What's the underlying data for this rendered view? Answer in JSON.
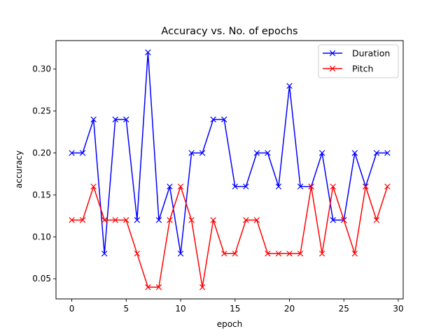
{
  "chart_data": {
    "type": "line",
    "title": "Accuracy vs. No. of epochs",
    "xlabel": "epoch",
    "ylabel": "accuracy",
    "xlim": [
      -1.45,
      30.45
    ],
    "ylim": [
      0.026,
      0.334
    ],
    "xticks": [
      0,
      5,
      10,
      15,
      20,
      25,
      30
    ],
    "yticks": [
      0.05,
      0.1,
      0.15,
      0.2,
      0.25,
      0.3
    ],
    "ytick_labels": [
      "0.05",
      "0.10",
      "0.15",
      "0.20",
      "0.25",
      "0.30"
    ],
    "grid": false,
    "legend_position": "top-right",
    "marker": "x",
    "x": [
      0,
      1,
      2,
      3,
      4,
      5,
      6,
      7,
      8,
      9,
      10,
      11,
      12,
      13,
      14,
      15,
      16,
      17,
      18,
      19,
      20,
      21,
      22,
      23,
      24,
      25,
      26,
      27,
      28,
      29
    ],
    "series": [
      {
        "name": "Duration",
        "color": "#0000ff",
        "values": [
          0.2,
          0.2,
          0.24,
          0.08,
          0.24,
          0.24,
          0.12,
          0.32,
          0.12,
          0.16,
          0.08,
          0.2,
          0.2,
          0.24,
          0.24,
          0.16,
          0.16,
          0.2,
          0.2,
          0.16,
          0.28,
          0.16,
          0.16,
          0.2,
          0.12,
          0.12,
          0.2,
          0.16,
          0.2,
          0.2
        ]
      },
      {
        "name": "Pitch",
        "color": "#ff0000",
        "values": [
          0.12,
          0.12,
          0.16,
          0.12,
          0.12,
          0.12,
          0.08,
          0.04,
          0.04,
          0.12,
          0.16,
          0.12,
          0.04,
          0.12,
          0.08,
          0.08,
          0.12,
          0.12,
          0.08,
          0.08,
          0.08,
          0.08,
          0.16,
          0.08,
          0.16,
          0.12,
          0.08,
          0.16,
          0.12,
          0.16
        ]
      }
    ]
  }
}
